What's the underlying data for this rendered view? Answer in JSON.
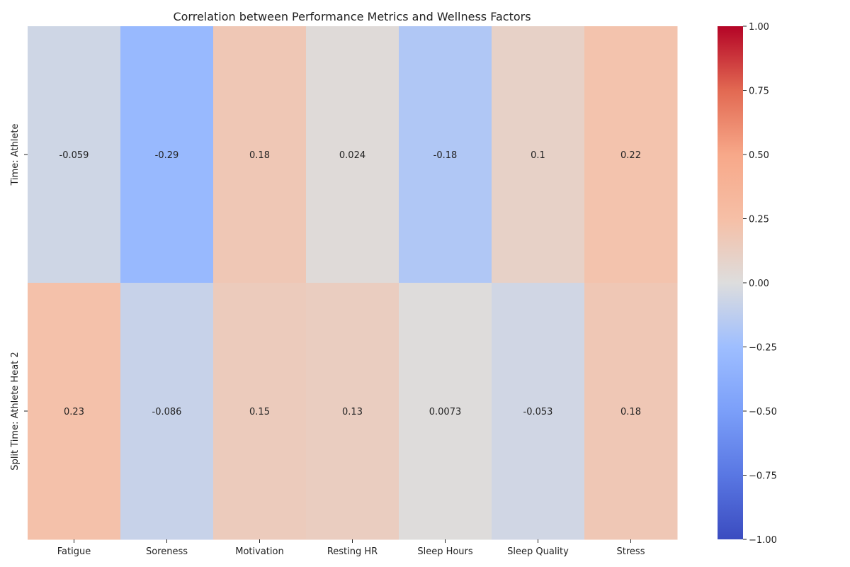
{
  "chart_data": {
    "type": "heatmap",
    "title": "Correlation between Performance Metrics and Wellness Factors",
    "xlabel": "",
    "ylabel": "",
    "x_categories": [
      "Fatigue",
      "Soreness",
      "Motivation",
      "Resting HR",
      "Sleep Hours",
      "Sleep Quality",
      "Stress"
    ],
    "y_categories": [
      "Time: Athlete",
      "Split Time: Athlete Heat 2"
    ],
    "values": [
      [
        -0.059,
        -0.29,
        0.18,
        0.024,
        -0.18,
        0.1,
        0.22
      ],
      [
        0.23,
        -0.086,
        0.15,
        0.13,
        0.0073,
        -0.053,
        0.18
      ]
    ],
    "value_labels": [
      [
        "-0.059",
        "-0.29",
        "0.18",
        "0.024",
        "-0.18",
        "0.1",
        "0.22"
      ],
      [
        "0.23",
        "-0.086",
        "0.15",
        "0.13",
        "0.0073",
        "-0.053",
        "0.18"
      ]
    ],
    "colormap": "coolwarm",
    "color_range": [
      -1,
      1
    ],
    "colorbar_ticks": [
      1.0,
      0.75,
      0.5,
      0.25,
      0.0,
      -0.25,
      -0.5,
      -0.75,
      -1.0
    ],
    "colorbar_tick_labels": [
      "1.00",
      "0.75",
      "0.50",
      "0.25",
      "0.00",
      "−0.25",
      "−0.50",
      "−0.75",
      "−1.00"
    ],
    "colorbar_placement": "right",
    "grid": false
  }
}
